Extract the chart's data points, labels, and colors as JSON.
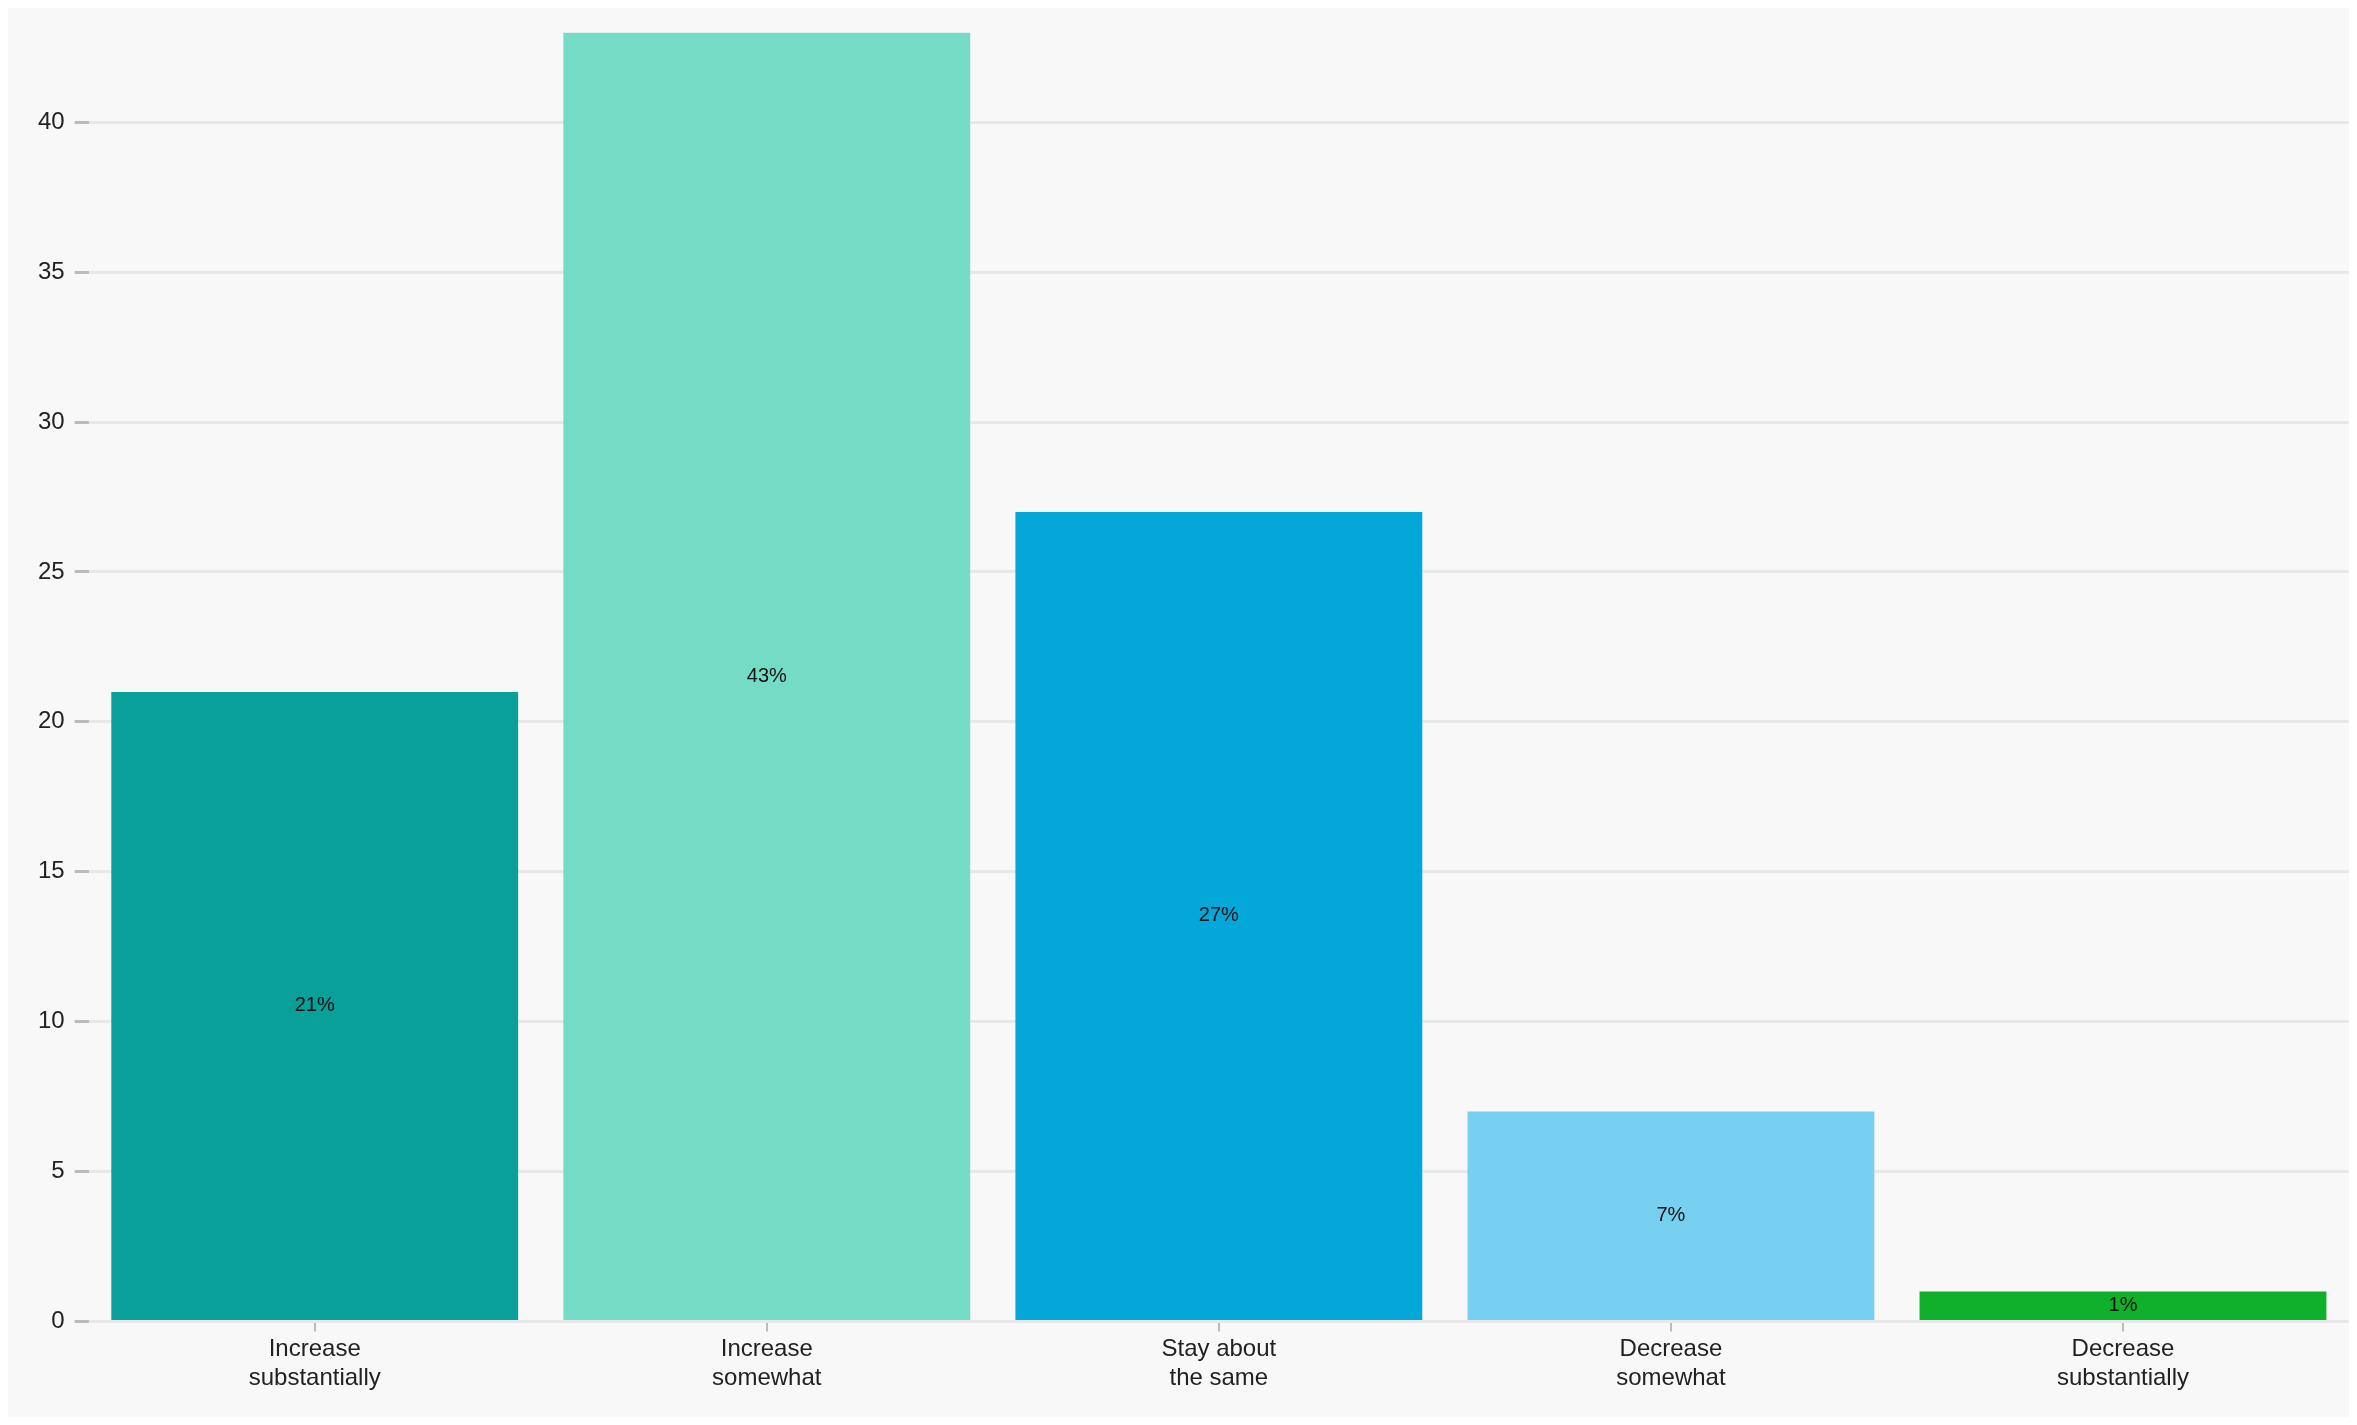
{
  "chart_data": {
    "type": "bar",
    "categories": [
      "Increase substantially",
      "Increase somewhat",
      "Stay about the same",
      "Decrease somewhat",
      "Decrease substantially"
    ],
    "values": [
      21,
      43,
      27,
      7,
      1
    ],
    "colors": [
      "#08a098",
      "#74dcc4",
      "#04a8d8",
      "#78d0f0",
      "#10b02c"
    ],
    "value_labels": [
      "21%",
      "43%",
      "27%",
      "7%",
      "1%"
    ],
    "ylim": [
      0,
      43
    ],
    "yticks": [
      0,
      5,
      10,
      15,
      20,
      25,
      30,
      35,
      40
    ],
    "grid": "y",
    "legend": false
  }
}
